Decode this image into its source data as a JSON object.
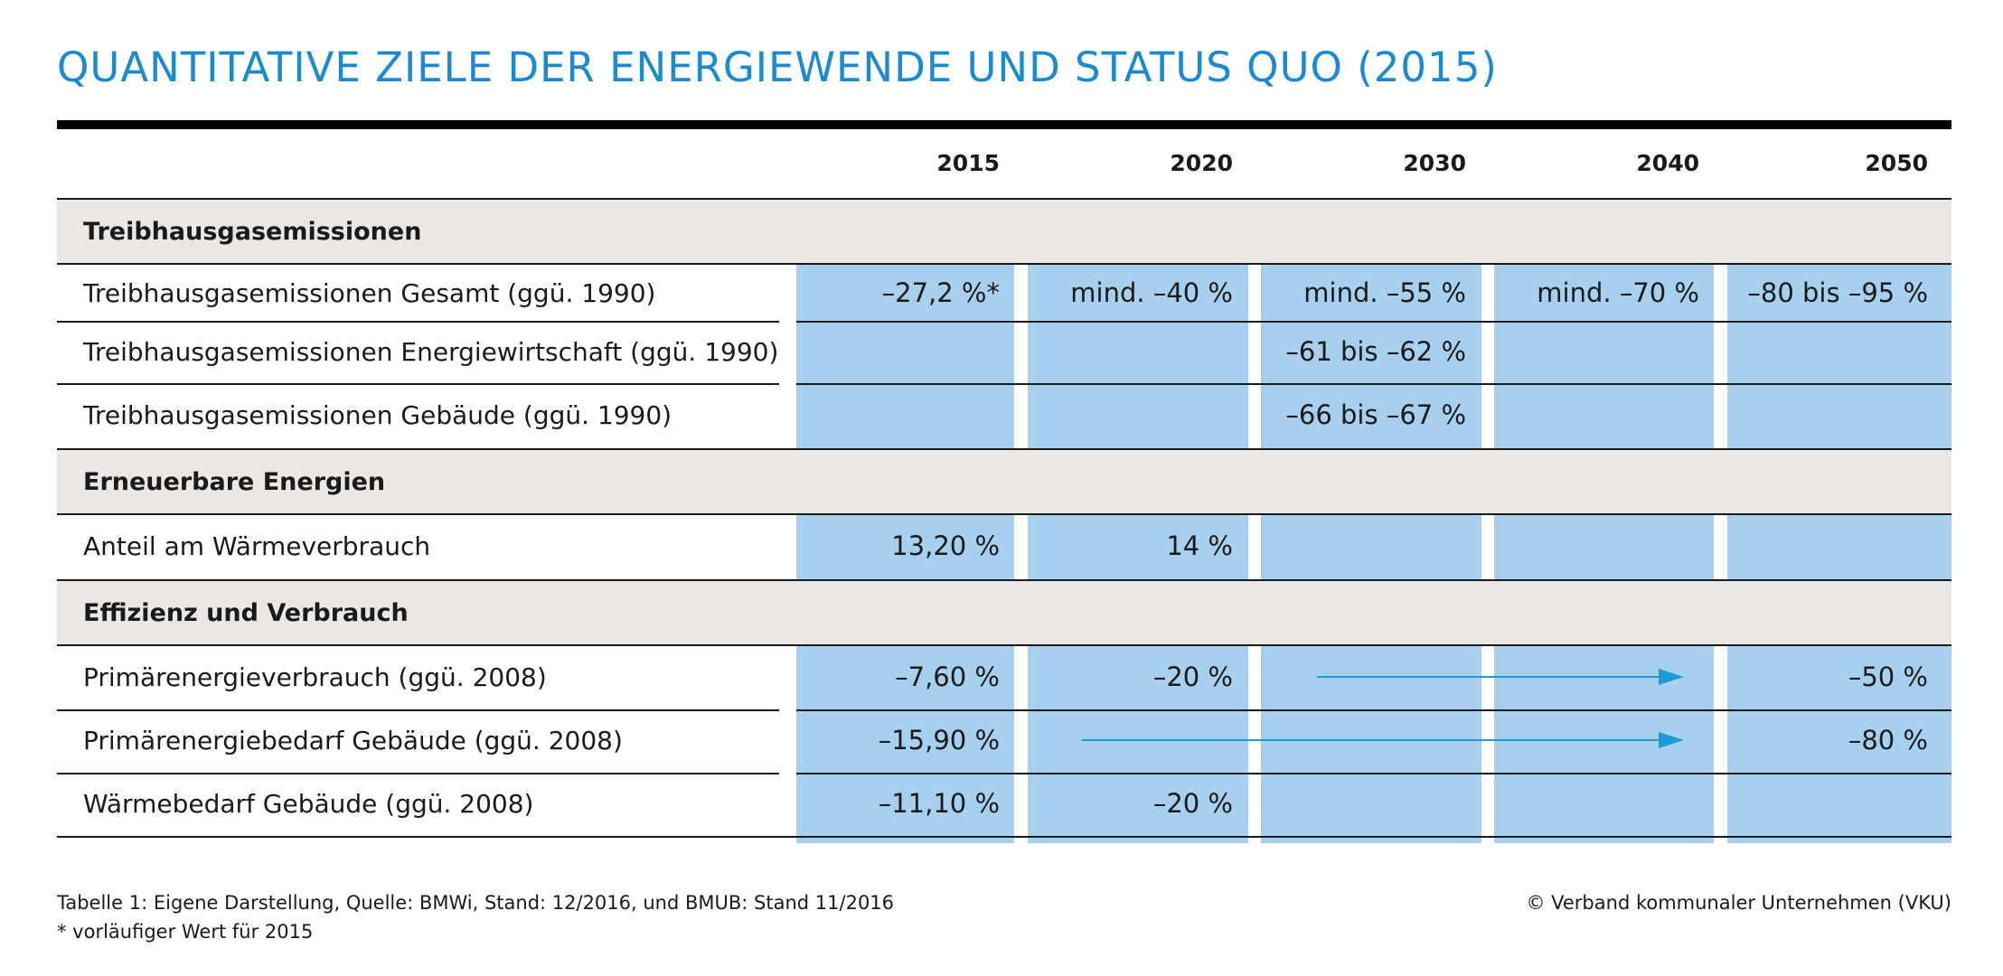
{
  "title": "QUANTITATIVE ZIELE DER ENERGIEWENDE UND STATUS QUO (2015)",
  "years": [
    "2015",
    "2020",
    "2030",
    "2040",
    "2050"
  ],
  "categories": [
    {
      "label": "Treibhausgasemissionen",
      "rows": [
        {
          "label": "Treibhausgasemissionen Gesamt (ggü. 1990)",
          "values": [
            "–27,2 %*",
            "mind. –40 %",
            "mind. –55 %",
            "mind. –70 %",
            "–80 bis –95 %"
          ]
        },
        {
          "label": "Treibhausgasemissionen Energiewirtschaft (ggü. 1990)",
          "values": [
            "",
            "",
            "–61 bis –62 %",
            "",
            ""
          ]
        },
        {
          "label": "Treibhausgasemissionen Gebäude (ggü. 1990)",
          "values": [
            "",
            "",
            "–66 bis –67 %",
            "",
            ""
          ]
        }
      ]
    },
    {
      "label": "Erneuerbare Energien",
      "rows": [
        {
          "label": "Anteil am Wärmeverbrauch",
          "values": [
            "13,20 %",
            "14 %",
            "",
            "",
            ""
          ]
        }
      ]
    },
    {
      "label": "Effizienz und Verbrauch",
      "rows": [
        {
          "label": "Primärenergieverbrauch (ggü. 2008)",
          "values": [
            "–7,60 %",
            "–20 %",
            "",
            "",
            "–50 %"
          ]
        },
        {
          "label": "Primärenergiebedarf Gebäude (ggü. 2008)",
          "values": [
            "–15,90 %",
            "",
            "",
            "",
            "–80 %"
          ]
        },
        {
          "label": "Wärmebedarf Gebäude (ggü. 2008)",
          "values": [
            "–11,10 %",
            "–20 %",
            "",
            "",
            ""
          ]
        }
      ]
    }
  ],
  "colors": {
    "accent": "#1b8ad0",
    "band": "#a7d0ef",
    "category_bg": "#ebe7e5",
    "arrow": "#1b9ad6"
  },
  "footnote_source": "Tabelle 1: Eigene Darstellung, Quelle: BMWi, Stand: 12/2016, und BMUB: Stand 11/2016",
  "footnote_star": "* vorläufiger Wert für 2015",
  "copyright": "© Verband kommunaler Unternehmen (VKU)"
}
